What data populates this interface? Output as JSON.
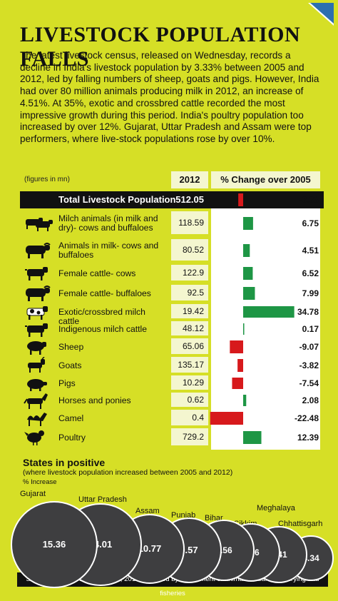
{
  "title": "LIVESTOCK POPULATION FALLS",
  "intro": "The latest livestock census, released on Wednesday, records a decline in India's livestock population by 3.33% between 2005 and 2012, led by falling numbers of sheep, goats and pigs. However, India had over 80 million animals producing milk in 2012, an increase of 4.51%. At 35%, exotic and crossbred cattle recorded the most impressive growth during this period. India's poultry population too increased by over 12%. Gujarat, Uttar Pradesh and Assam were top performers, where live-stock populations rose by over 10%.",
  "unit_note": "(figures in mn)",
  "col_year": "2012",
  "col_change": "% Change over 2005",
  "colors": {
    "positive": "#1e9645",
    "negative": "#d7191c",
    "background": "#d6df26",
    "panel": "#f4f6cf",
    "circle": "#3e3e40"
  },
  "chart_data": [
    {
      "type": "bar",
      "rows": [
        {
          "category": "Total Livestock Population",
          "value_2012": "512.05",
          "change": -3.33,
          "change_label": "-3.33",
          "icon": "livestock-total"
        },
        {
          "category": "Milch animals (in milk and dry)- cows and buffaloes",
          "value_2012": "118.59",
          "change": 6.75,
          "change_label": "6.75",
          "icon": "cow-buffalo-icon"
        },
        {
          "category": "Animals in milk- cows and buffaloes",
          "value_2012": "80.52",
          "change": 4.51,
          "change_label": "4.51",
          "icon": "buffalo-icon"
        },
        {
          "category": "Female cattle- cows",
          "value_2012": "122.9",
          "change": 6.52,
          "change_label": "6.52",
          "icon": "cow-icon"
        },
        {
          "category": "Female cattle- buffaloes",
          "value_2012": "92.5",
          "change": 7.99,
          "change_label": "7.99",
          "icon": "buffalo-icon"
        },
        {
          "category": "Exotic/crossbred milch cattle",
          "value_2012": "19.42",
          "change": 34.78,
          "change_label": "34.78",
          "icon": "spotted-cow-icon"
        },
        {
          "category": "Indigenous milch cattle",
          "value_2012": "48.12",
          "change": 0.17,
          "change_label": "0.17",
          "icon": "cow-icon"
        },
        {
          "category": "Sheep",
          "value_2012": "65.06",
          "change": -9.07,
          "change_label": "-9.07",
          "icon": "sheep-icon"
        },
        {
          "category": "Goats",
          "value_2012": "135.17",
          "change": -3.82,
          "change_label": "-3.82",
          "icon": "goat-icon"
        },
        {
          "category": "Pigs",
          "value_2012": "10.29",
          "change": -7.54,
          "change_label": "-7.54",
          "icon": "pig-icon"
        },
        {
          "category": "Horses and ponies",
          "value_2012": "0.62",
          "change": 2.08,
          "change_label": "2.08",
          "icon": "horse-icon"
        },
        {
          "category": "Camel",
          "value_2012": "0.4",
          "change": -22.48,
          "change_label": "-22.48",
          "icon": "camel-icon"
        },
        {
          "category": "Poultry",
          "value_2012": "729.2",
          "change": 12.39,
          "change_label": "12.39",
          "icon": "hen-icon"
        }
      ]
    },
    {
      "type": "bubble",
      "title": "States in positive",
      "subtitle": "(where livestock population increased between 2005 and 2012)",
      "unit": "% Increase",
      "states": [
        {
          "name": "Gujarat",
          "value": 15.36,
          "label": "15.36"
        },
        {
          "name": "Uttar Pradesh",
          "value": 14.01,
          "label": "14.01"
        },
        {
          "name": "Assam",
          "value": 10.77,
          "label": "10.77"
        },
        {
          "name": "Punjab",
          "value": 9.57,
          "label": "9.57"
        },
        {
          "name": "Bihar",
          "value": 8.56,
          "label": "8.56"
        },
        {
          "name": "Sikkim",
          "value": 7.96,
          "label": "7.96"
        },
        {
          "name": "Meghalaya",
          "value": 7.41,
          "label": "7.41"
        },
        {
          "name": "Chhattisgarh",
          "value": 4.34,
          "label": "4.34"
        }
      ]
    }
  ],
  "source": "Source: 19th Livestock Census, 2012, released by department of animal husbandry, dairying and fisheries"
}
